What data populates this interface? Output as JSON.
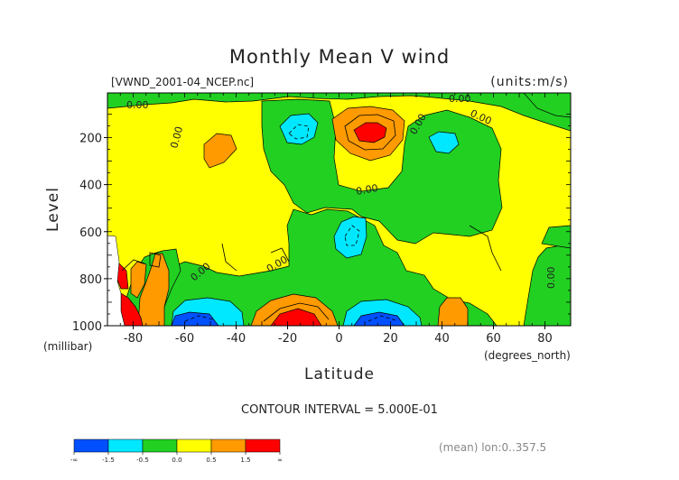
{
  "chart_data": {
    "type": "heatmap",
    "title": "Monthly Mean V wind",
    "file_label": "[VWND_2001-04_NCEP.nc]",
    "units_label": "(units:m/s)",
    "xlabel": "Latitude",
    "x_units": "(degrees_north)",
    "ylabel": "Level",
    "y_units": "(millibar)",
    "xlim": [
      -90,
      90
    ],
    "ylim": [
      1000,
      10
    ],
    "x_ticks": [
      -80,
      -60,
      -40,
      -20,
      0,
      20,
      40,
      60,
      80
    ],
    "x_tick_labels": [
      "-80",
      "-60",
      "-40",
      "-20",
      "0",
      "20",
      "40",
      "60",
      "80"
    ],
    "y_ticks": [
      200,
      400,
      600,
      800,
      1000
    ],
    "y_tick_labels": [
      "200",
      "400",
      "600",
      "800",
      "1000"
    ],
    "contour_interval_text": "CONTOUR INTERVAL = 5.000E-01",
    "contour_labels": [
      "0.00",
      "0.00",
      "0.00",
      "0.00",
      "0.00",
      "0.00",
      "0.00",
      "0.00",
      "0.00"
    ],
    "mean_text": "(mean) lon:0..357.5",
    "colorbar": {
      "colors": [
        "#0050ff",
        "#00e8ff",
        "#22d022",
        "#ffff00",
        "#ff9a00",
        "#ff0000"
      ],
      "labels": [
        "-∞",
        "-1.5",
        "-0.5",
        "0.0",
        "0.5",
        "1.5",
        "∞"
      ]
    }
  }
}
